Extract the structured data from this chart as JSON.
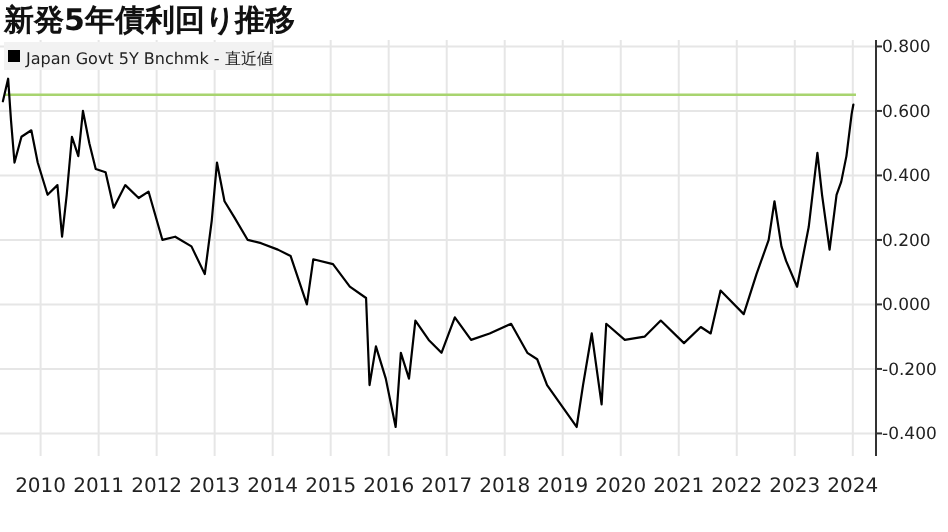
{
  "chart_data": {
    "type": "line",
    "title": "新発5年債利回り推移",
    "legend": "top left",
    "grid": true,
    "marker": "none",
    "line_style": "solid",
    "xlim": [
      2009.8,
      2024.9
    ],
    "ylim": [
      -0.47,
      0.82
    ],
    "xticks": [
      {
        "value": 2010.5,
        "label": "2010"
      },
      {
        "value": 2011.5,
        "label": "2011"
      },
      {
        "value": 2012.5,
        "label": "2012"
      },
      {
        "value": 2013.5,
        "label": "2013"
      },
      {
        "value": 2014.5,
        "label": "2014"
      },
      {
        "value": 2015.5,
        "label": "2015"
      },
      {
        "value": 2016.5,
        "label": "2016"
      },
      {
        "value": 2017.5,
        "label": "2017"
      },
      {
        "value": 2018.5,
        "label": "2018"
      },
      {
        "value": 2019.5,
        "label": "2019"
      },
      {
        "value": 2020.5,
        "label": "2020"
      },
      {
        "value": 2021.5,
        "label": "2021"
      },
      {
        "value": 2022.5,
        "label": "2022"
      },
      {
        "value": 2023.5,
        "label": "2023"
      },
      {
        "value": 2024.5,
        "label": "2024"
      }
    ],
    "yticks": [
      {
        "value": 0.8,
        "label": "0.800"
      },
      {
        "value": 0.6,
        "label": "0.600"
      },
      {
        "value": 0.4,
        "label": "0.400"
      },
      {
        "value": 0.2,
        "label": "0.200"
      },
      {
        "value": 0,
        "label": "0.000"
      },
      {
        "value": -0.2,
        "label": "-0.200"
      },
      {
        "value": -0.4,
        "label": "-0.400"
      }
    ],
    "ref_lines": [
      {
        "axis": "y",
        "value": 0.65,
        "color": "#a8d46f"
      }
    ],
    "series": [
      {
        "name": "Japan Govt 5Y Bnchmk - 直近値",
        "color": "#000000",
        "x": [
          2009.85,
          2009.94,
          2009.99,
          2010.05,
          2010.17,
          2010.34,
          2010.45,
          2010.62,
          2010.79,
          2010.87,
          2010.95,
          2011.04,
          2011.15,
          2011.23,
          2011.34,
          2011.45,
          2011.62,
          2011.76,
          2011.96,
          2012.19,
          2012.36,
          2012.6,
          2012.82,
          2013.1,
          2013.33,
          2013.45,
          2013.54,
          2013.67,
          2013.84,
          2014.07,
          2014.3,
          2014.59,
          2014.81,
          2015.09,
          2015.2,
          2015.54,
          2015.83,
          2016.11,
          2016.17,
          2016.28,
          2016.45,
          2016.62,
          2016.71,
          2016.85,
          2016.96,
          2017.19,
          2017.41,
          2017.64,
          2017.92,
          2018.24,
          2018.61,
          2018.89,
          2019.06,
          2019.23,
          2019.74,
          2019.85,
          2020.0,
          2020.17,
          2020.25,
          2020.57,
          2020.91,
          2021.19,
          2021.59,
          2021.88,
          2022.05,
          2022.22,
          2022.62,
          2022.84,
          2023.05,
          2023.15,
          2023.27,
          2023.35,
          2023.54,
          2023.74,
          2023.89,
          2023.97,
          2024.1,
          2024.22,
          2024.3,
          2024.39,
          2024.48,
          2024.51
        ],
        "values": [
          0.63,
          0.7,
          0.57,
          0.44,
          0.52,
          0.54,
          0.44,
          0.34,
          0.37,
          0.21,
          0.34,
          0.52,
          0.46,
          0.6,
          0.5,
          0.42,
          0.41,
          0.3,
          0.37,
          0.33,
          0.35,
          0.2,
          0.21,
          0.18,
          0.094,
          0.26,
          0.44,
          0.32,
          0.27,
          0.2,
          0.19,
          0.17,
          0.15,
          0.0,
          0.14,
          0.125,
          0.055,
          0.02,
          -0.25,
          -0.13,
          -0.23,
          -0.38,
          -0.15,
          -0.23,
          -0.05,
          -0.11,
          -0.15,
          -0.04,
          -0.11,
          -0.09,
          -0.06,
          -0.15,
          -0.17,
          -0.25,
          -0.38,
          -0.25,
          -0.09,
          -0.31,
          -0.06,
          -0.11,
          -0.1,
          -0.05,
          -0.12,
          -0.07,
          -0.09,
          0.043,
          -0.03,
          0.094,
          0.2,
          0.32,
          0.18,
          0.135,
          0.055,
          0.24,
          0.47,
          0.34,
          0.17,
          0.34,
          0.38,
          0.46,
          0.59,
          0.62
        ]
      }
    ]
  }
}
